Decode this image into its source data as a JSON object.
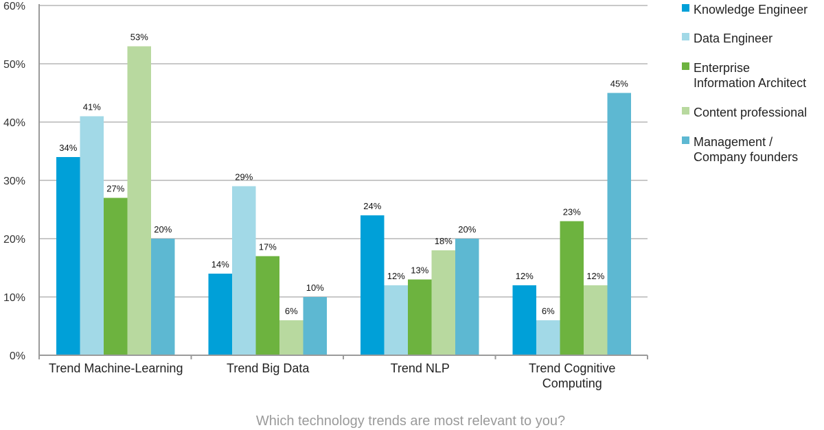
{
  "chart_data": {
    "type": "bar",
    "title": "",
    "caption": "Which technology trends are most relevant to you?",
    "xlabel": "",
    "ylabel": "",
    "ylim": [
      0,
      60
    ],
    "y_ticks": [
      "0%",
      "10%",
      "20%",
      "30%",
      "40%",
      "50%",
      "60%"
    ],
    "y_tick_values": [
      0,
      10,
      20,
      30,
      40,
      50,
      60
    ],
    "grid": true,
    "legend_position": "right",
    "categories": [
      [
        "Trend Machine-Learning"
      ],
      [
        "Trend Big Data"
      ],
      [
        "Trend NLP"
      ],
      [
        "Trend Cognitive",
        "Computing"
      ]
    ],
    "series": [
      {
        "name": [
          "Knowledge Engineer"
        ],
        "color": "#00a0d8",
        "values": [
          34,
          14,
          24,
          12
        ],
        "labels": [
          "34%",
          "14%",
          "24%",
          "12%"
        ]
      },
      {
        "name": [
          "Data Engineer"
        ],
        "color": "#a2d9e7",
        "values": [
          41,
          29,
          12,
          6
        ],
        "labels": [
          "41%",
          "29%",
          "12%",
          "6%"
        ]
      },
      {
        "name": [
          "Enterprise",
          "Information Architect"
        ],
        "color": "#6db33f",
        "values": [
          27,
          17,
          13,
          23
        ],
        "labels": [
          "27%",
          "17%",
          "13%",
          "23%"
        ]
      },
      {
        "name": [
          "Content professional"
        ],
        "color": "#b8d99f",
        "values": [
          53,
          6,
          18,
          12
        ],
        "labels": [
          "53%",
          "6%",
          "18%",
          "12%"
        ]
      },
      {
        "name": [
          "Management /",
          "Company founders"
        ],
        "color": "#5db8d2",
        "values": [
          20,
          10,
          20,
          45
        ],
        "labels": [
          "20%",
          "10%",
          "20%",
          "45%"
        ]
      }
    ]
  }
}
